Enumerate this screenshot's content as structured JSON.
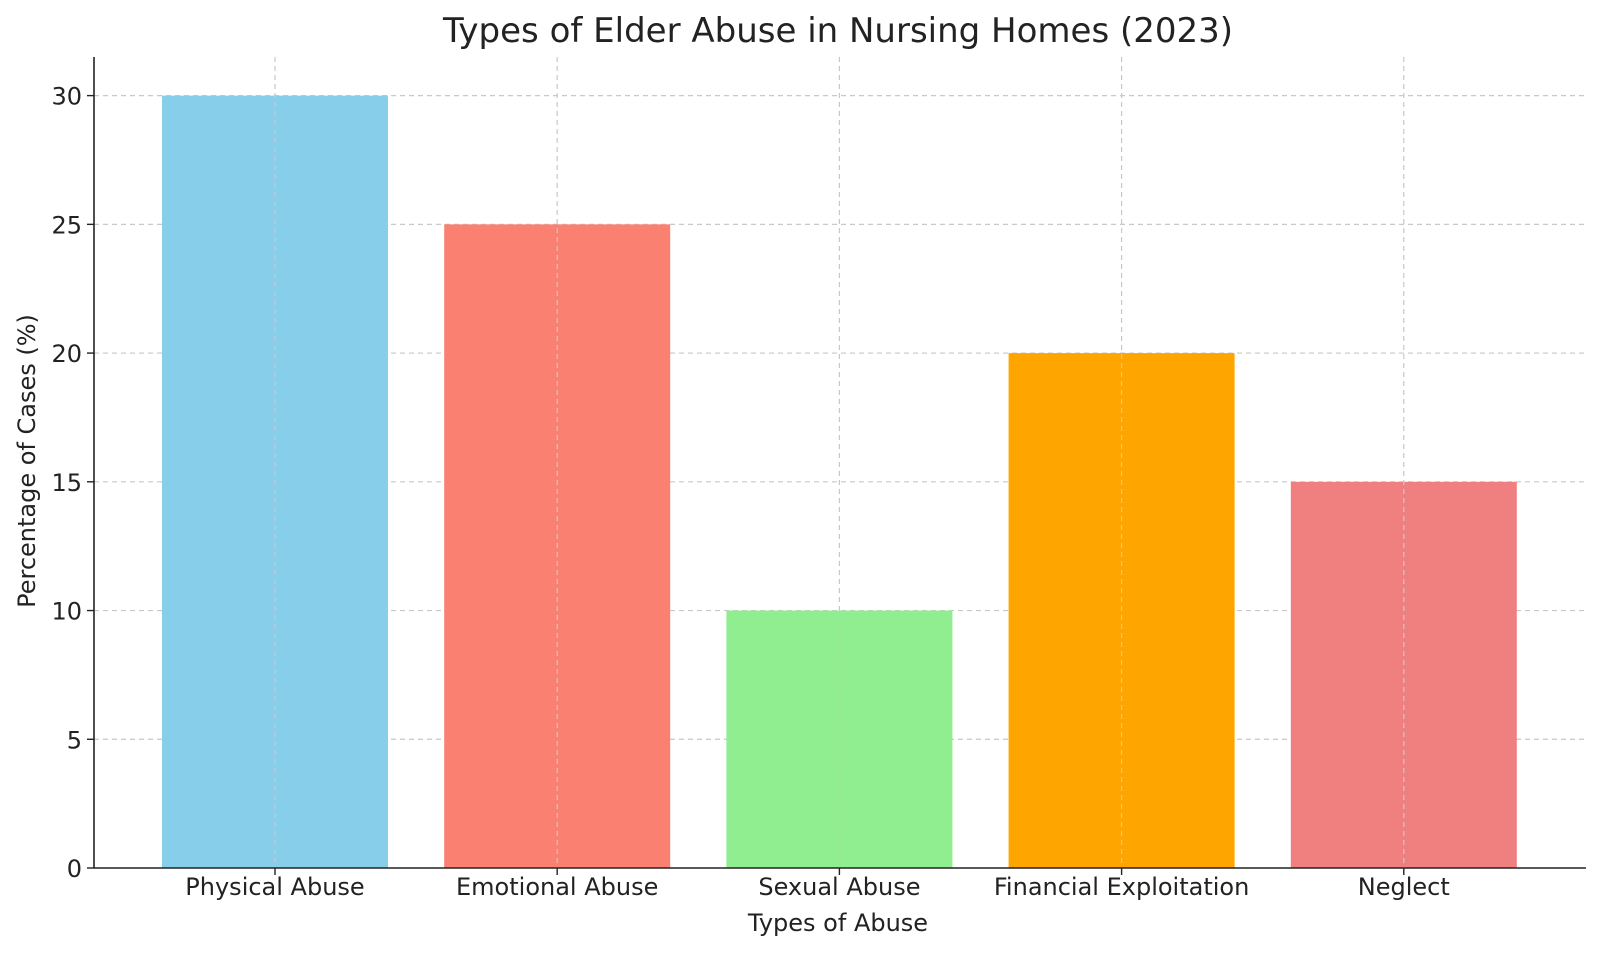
{
  "chart_data": {
    "type": "bar",
    "title": "Types of Elder Abuse in Nursing Homes (2023)",
    "xlabel": "Types of Abuse",
    "ylabel": "Percentage of Cases (%)",
    "categories": [
      "Physical Abuse",
      "Emotional Abuse",
      "Sexual Abuse",
      "Financial Exploitation",
      "Neglect"
    ],
    "values": [
      30,
      25,
      10,
      20,
      15
    ],
    "colors": [
      "#87ceeb",
      "#fa8072",
      "#90ee90",
      "#ffa500",
      "#f08080"
    ],
    "ylim": [
      0,
      31.5
    ],
    "yticks": [
      0,
      5,
      10,
      15,
      20,
      25,
      30
    ],
    "grid": true,
    "legend": "none"
  }
}
